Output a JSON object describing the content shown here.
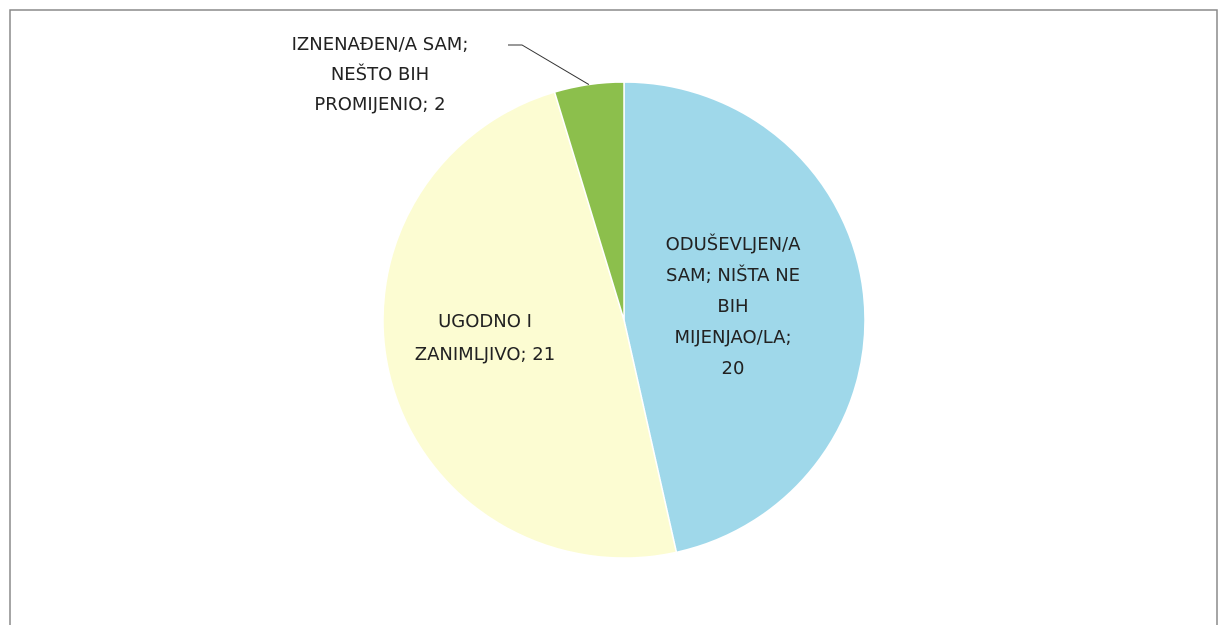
{
  "chart_data": {
    "type": "pie",
    "values": [
      20,
      21,
      2
    ],
    "value_labels": [
      [
        "ODUŠEVLJEN/A",
        "SAM; NIŠTA NE",
        "BIH",
        "MIJENJAO/LA;",
        "20"
      ],
      [
        "UGODNO I",
        "ZANIMLJIVO; 21"
      ],
      [
        "IZNENAĐEN/A SAM;",
        "NEŠTO BIH",
        "PROMIJENIO; 2"
      ]
    ],
    "colors": [
      "#9fd8ea",
      "#fcfcd2",
      "#8cbf4c"
    ]
  }
}
